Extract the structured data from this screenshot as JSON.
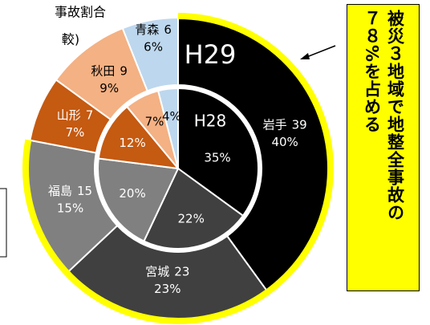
{
  "chart_data": {
    "type": "nested_donut",
    "title": "H29",
    "inner_title": "H28",
    "left_texts": [
      "事故割合",
      "較)"
    ],
    "annotation": {
      "column1": "被災３地域で地整全事故の",
      "column2": "７８%を占める"
    },
    "categories": [
      "岩手",
      "宮城",
      "福島",
      "山形",
      "秋田",
      "青森"
    ],
    "counts": [
      39,
      23,
      15,
      7,
      9,
      6
    ],
    "colors": [
      "#000000",
      "#404040",
      "#808080",
      "#c55a11",
      "#f4b183",
      "#bdd7ee"
    ],
    "label_colors": [
      "#ffffff",
      "#ffffff",
      "#ffffff",
      "#ffffff",
      "#000000",
      "#000000"
    ],
    "highlight_color": "#ffff00",
    "highlight_count": 3,
    "series": [
      {
        "name": "H29",
        "values": [
          40,
          23,
          15,
          7,
          9,
          6
        ],
        "value_labels": [
          "40%",
          "23%",
          "15%",
          "7%",
          "9%",
          "6%"
        ]
      },
      {
        "name": "H28",
        "values": [
          35,
          22,
          20,
          12,
          7,
          4
        ],
        "value_labels": [
          "35%",
          "22%",
          "20%",
          "12%",
          "7%",
          "4%"
        ]
      }
    ]
  }
}
